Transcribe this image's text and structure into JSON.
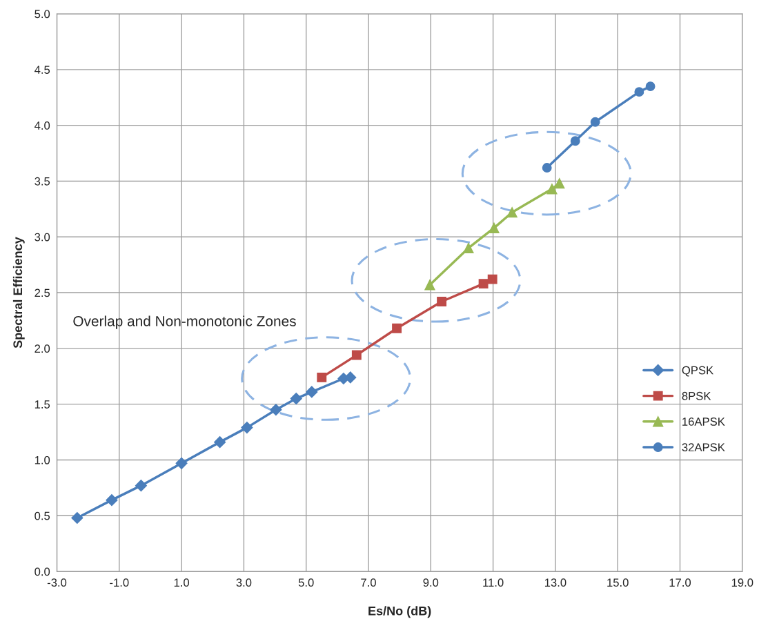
{
  "chart_data": {
    "type": "line",
    "xlabel": "Es/No (dB)",
    "ylabel": "Spectral Efficiency",
    "annotations": [
      "Overlap and Non-monotonic Zones"
    ],
    "series": [
      {
        "name": "QPSK",
        "color": "#4a7ebb",
        "marker": "diamond",
        "x": [
          -2.35,
          -1.24,
          -0.3,
          1.0,
          2.23,
          3.1,
          4.03,
          4.68,
          5.18,
          6.2,
          6.42
        ],
        "values": [
          0.48,
          0.64,
          0.77,
          0.97,
          1.16,
          1.29,
          1.45,
          1.55,
          1.61,
          1.73,
          1.74
        ]
      },
      {
        "name": "8PSK",
        "color": "#be4b48",
        "marker": "square",
        "x": [
          5.5,
          6.62,
          7.91,
          9.35,
          10.69,
          10.98
        ],
        "values": [
          1.74,
          1.94,
          2.18,
          2.42,
          2.58,
          2.62
        ]
      },
      {
        "name": "16APSK",
        "color": "#98b954",
        "marker": "triangle",
        "x": [
          8.97,
          10.21,
          11.03,
          11.61,
          12.89,
          13.13
        ],
        "values": [
          2.57,
          2.9,
          3.08,
          3.22,
          3.43,
          3.48
        ]
      },
      {
        "name": "32APSK",
        "color": "#4a7ebb",
        "marker": "circle",
        "x": [
          12.73,
          13.64,
          14.28,
          15.69,
          16.05
        ],
        "values": [
          3.62,
          3.86,
          4.03,
          4.3,
          4.35
        ]
      }
    ],
    "xlim": [
      -3,
      19
    ],
    "xticks": [
      {
        "value": -3,
        "label": "-3.0"
      },
      {
        "value": -1,
        "label": "-1.0"
      },
      {
        "value": 1,
        "label": "1.0"
      },
      {
        "value": 3,
        "label": "3.0"
      },
      {
        "value": 5,
        "label": "5.0"
      },
      {
        "value": 7,
        "label": "7.0"
      },
      {
        "value": 9,
        "label": "9.0"
      },
      {
        "value": 11,
        "label": "11.0"
      },
      {
        "value": 13,
        "label": "13.0"
      },
      {
        "value": 15,
        "label": "15.0"
      },
      {
        "value": 17,
        "label": "17.0"
      },
      {
        "value": 19,
        "label": "19.0"
      }
    ],
    "ylim": [
      0,
      5
    ],
    "yticks": [
      {
        "value": 0,
        "label": "0.0"
      },
      {
        "value": 0.5,
        "label": "0.5"
      },
      {
        "value": 1,
        "label": "1.0"
      },
      {
        "value": 1.5,
        "label": "1.5"
      },
      {
        "value": 2,
        "label": "2.0"
      },
      {
        "value": 2.5,
        "label": "2.5"
      },
      {
        "value": 3,
        "label": "3.0"
      },
      {
        "value": 3.5,
        "label": "3.5"
      },
      {
        "value": 4,
        "label": "4.0"
      },
      {
        "value": 4.5,
        "label": "4.5"
      },
      {
        "value": 5,
        "label": "5.0"
      }
    ],
    "grid": true,
    "legend": "right"
  }
}
